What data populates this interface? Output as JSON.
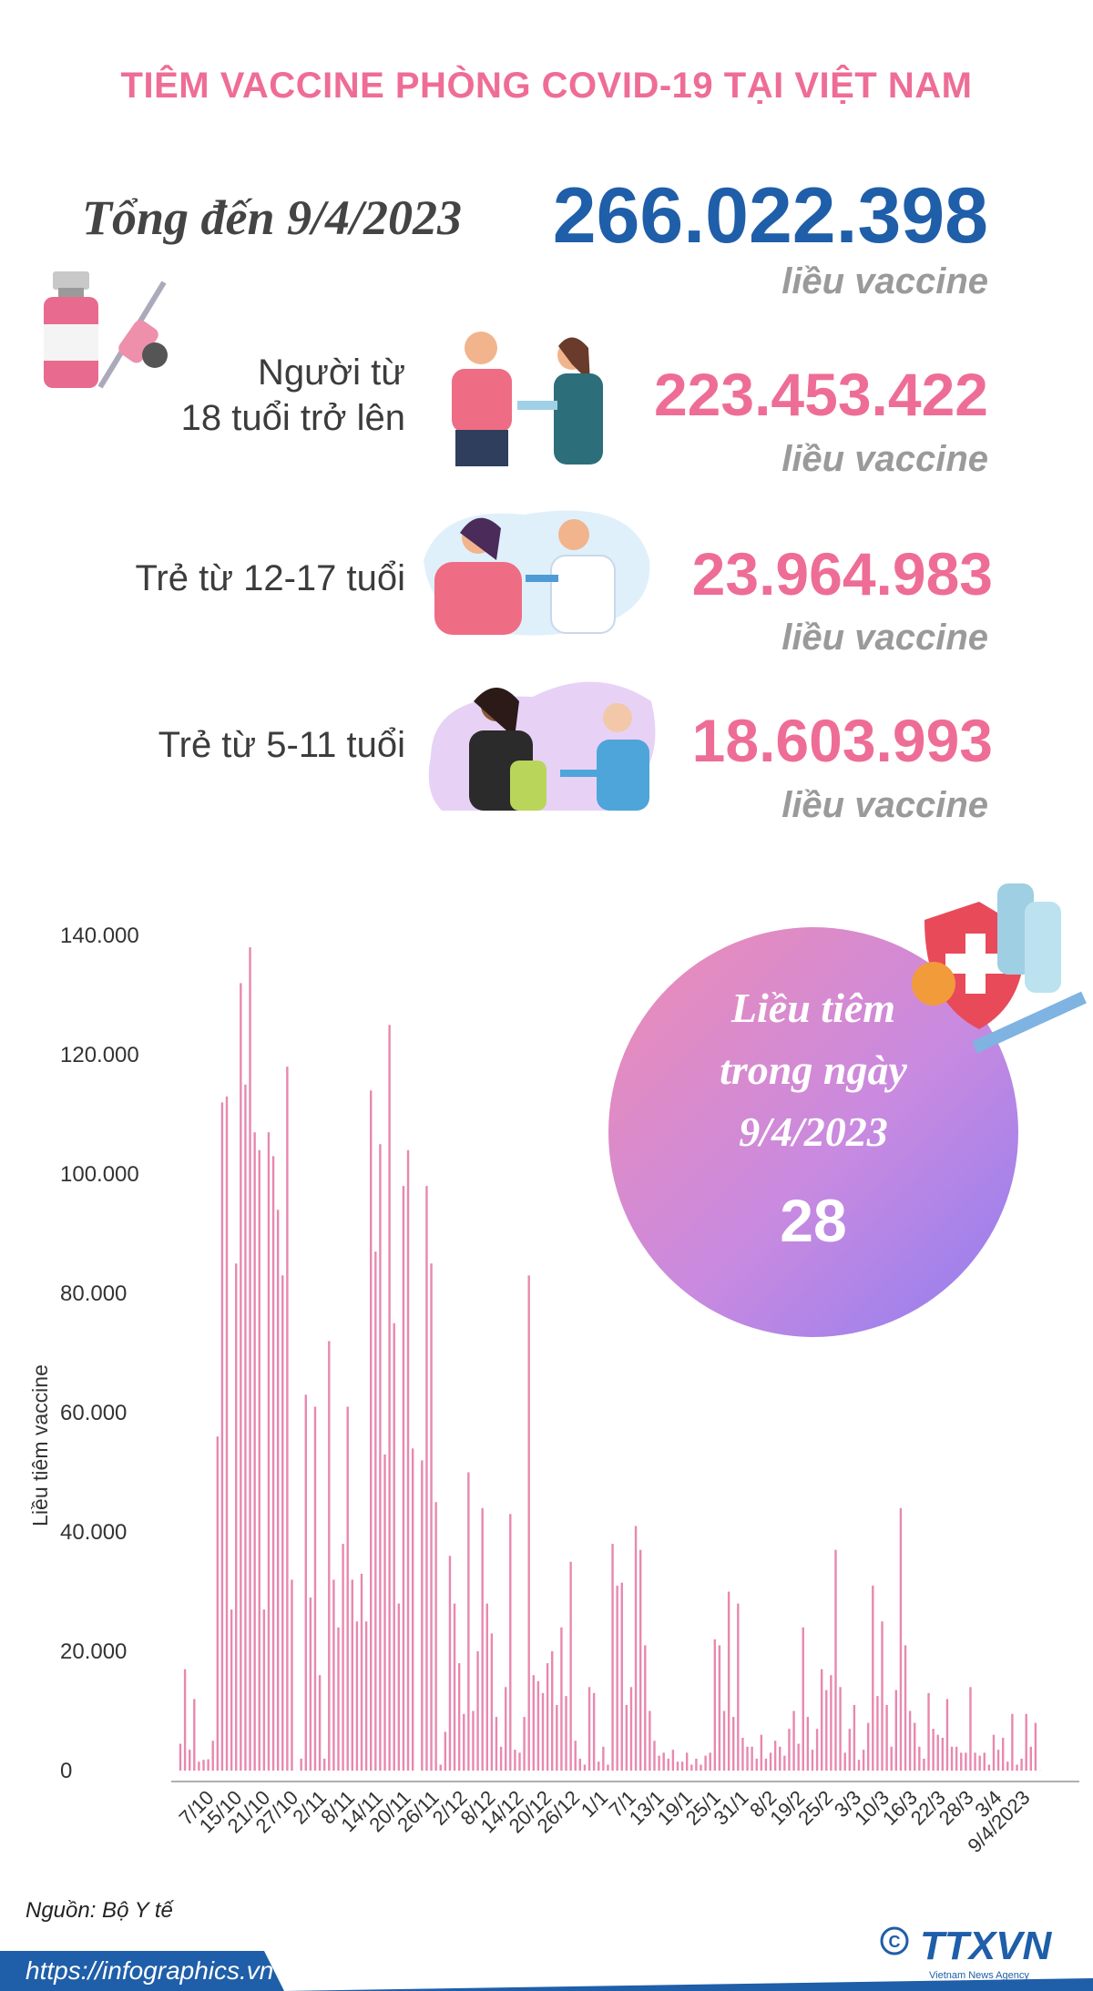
{
  "header": {
    "title": "TIÊM VACCINE PHÒNG COVID-19 TẠI VIỆT NAM"
  },
  "total": {
    "label": "Tổng đến 9/4/2023",
    "value": "266.022.398",
    "unit": "liều vaccine"
  },
  "groups": [
    {
      "label_line1": "Người từ",
      "label_line2": "18 tuổi trở lên",
      "value": "223.453.422",
      "unit": "liều vaccine"
    },
    {
      "label_line1": "",
      "label_line2": "Trẻ từ 12-17 tuổi",
      "value": "23.964.983",
      "unit": "liều vaccine"
    },
    {
      "label_line1": "",
      "label_line2": "Trẻ từ 5-11 tuổi",
      "value": "18.603.993",
      "unit": "liều vaccine"
    }
  ],
  "day_bubble": {
    "line1": "Liều tiêm",
    "line2": "trong ngày",
    "line3": "9/4/2023",
    "value": "28"
  },
  "chart_data": {
    "type": "bar",
    "ylabel": "Liều tiêm vaccine",
    "xlabel": "",
    "ylim": [
      0,
      140000
    ],
    "y_ticks": [
      "140.000",
      "120.000",
      "100.000",
      "80.000",
      "60.000",
      "40.000",
      "20.000",
      "0"
    ],
    "x_tick_labels": [
      "7/10",
      "15/10",
      "21/10",
      "27/10",
      "2/11",
      "8/11",
      "14/11",
      "20/11",
      "26/11",
      "2/12",
      "8/12",
      "14/12",
      "20/12",
      "26/12",
      "1/1",
      "7/1",
      "13/1",
      "19/1",
      "25/1",
      "31/1",
      "8/2",
      "19/2",
      "25/2",
      "3/3",
      "10/3",
      "16/3",
      "22/3",
      "28/3",
      "3/4",
      "9/4/2023"
    ],
    "values": [
      4500,
      17000,
      3500,
      12000,
      1500,
      1800,
      1900,
      5000,
      56000,
      112000,
      113000,
      27000,
      85000,
      132000,
      115000,
      138000,
      107000,
      104000,
      27000,
      107000,
      103000,
      94000,
      83000,
      118000,
      32000,
      0,
      2000,
      63000,
      29000,
      61000,
      16000,
      2000,
      72000,
      32000,
      24000,
      38000,
      61000,
      32000,
      25000,
      33000,
      25000,
      114000,
      87000,
      105000,
      53000,
      125000,
      75000,
      28000,
      98000,
      104000,
      54000,
      0,
      52000,
      98000,
      85000,
      45000,
      1000,
      6500,
      36000,
      28000,
      18000,
      9500,
      50000,
      10000,
      20000,
      44000,
      28000,
      23000,
      9000,
      4000,
      14000,
      43000,
      3500,
      3000,
      9000,
      83000,
      16000,
      15000,
      13000,
      18000,
      20000,
      11000,
      24000,
      12500,
      35000,
      5000,
      2000,
      1000,
      14000,
      13000,
      1500,
      4000,
      1000,
      38000,
      31000,
      31500,
      11000,
      14000,
      41000,
      37000,
      21000,
      10000,
      5000,
      2500,
      3000,
      2000,
      3500,
      1500,
      1500,
      3000,
      1000,
      2000,
      1000,
      2500,
      3000,
      22000,
      21000,
      10000,
      30000,
      9000,
      28000,
      5500,
      4000,
      4000,
      2000,
      6000,
      2000,
      3000,
      5000,
      4000,
      2500,
      7000,
      10000,
      4500,
      24000,
      9000,
      3500,
      7000,
      17000,
      13500,
      16000,
      37000,
      14000,
      3000,
      7000,
      11000,
      1800,
      3500,
      8000,
      31000,
      12500,
      25000,
      11000,
      4000,
      13500,
      44000,
      21000,
      10000,
      8000,
      4000,
      2000,
      13000,
      7000,
      6000,
      5500,
      12000,
      4000,
      4000,
      3000,
      3000,
      14000,
      3000,
      2500,
      3000,
      1000,
      6000,
      3500,
      5500,
      1500,
      9500,
      1000,
      2000,
      9500,
      4000,
      8000,
      28
    ]
  },
  "colors": {
    "title": "#ee6d96",
    "total_value": "#1f5ea8",
    "group_value": "#ee6d96",
    "bar": "#e888ae",
    "last_bar": "#f2a14b",
    "footer": "#1f5ea8"
  },
  "footer": {
    "source": "Nguồn: Bộ Y tế",
    "url": "https://infographics.vn",
    "logo": "TTXVN",
    "logo_sub": "Vietnam News Agency"
  }
}
